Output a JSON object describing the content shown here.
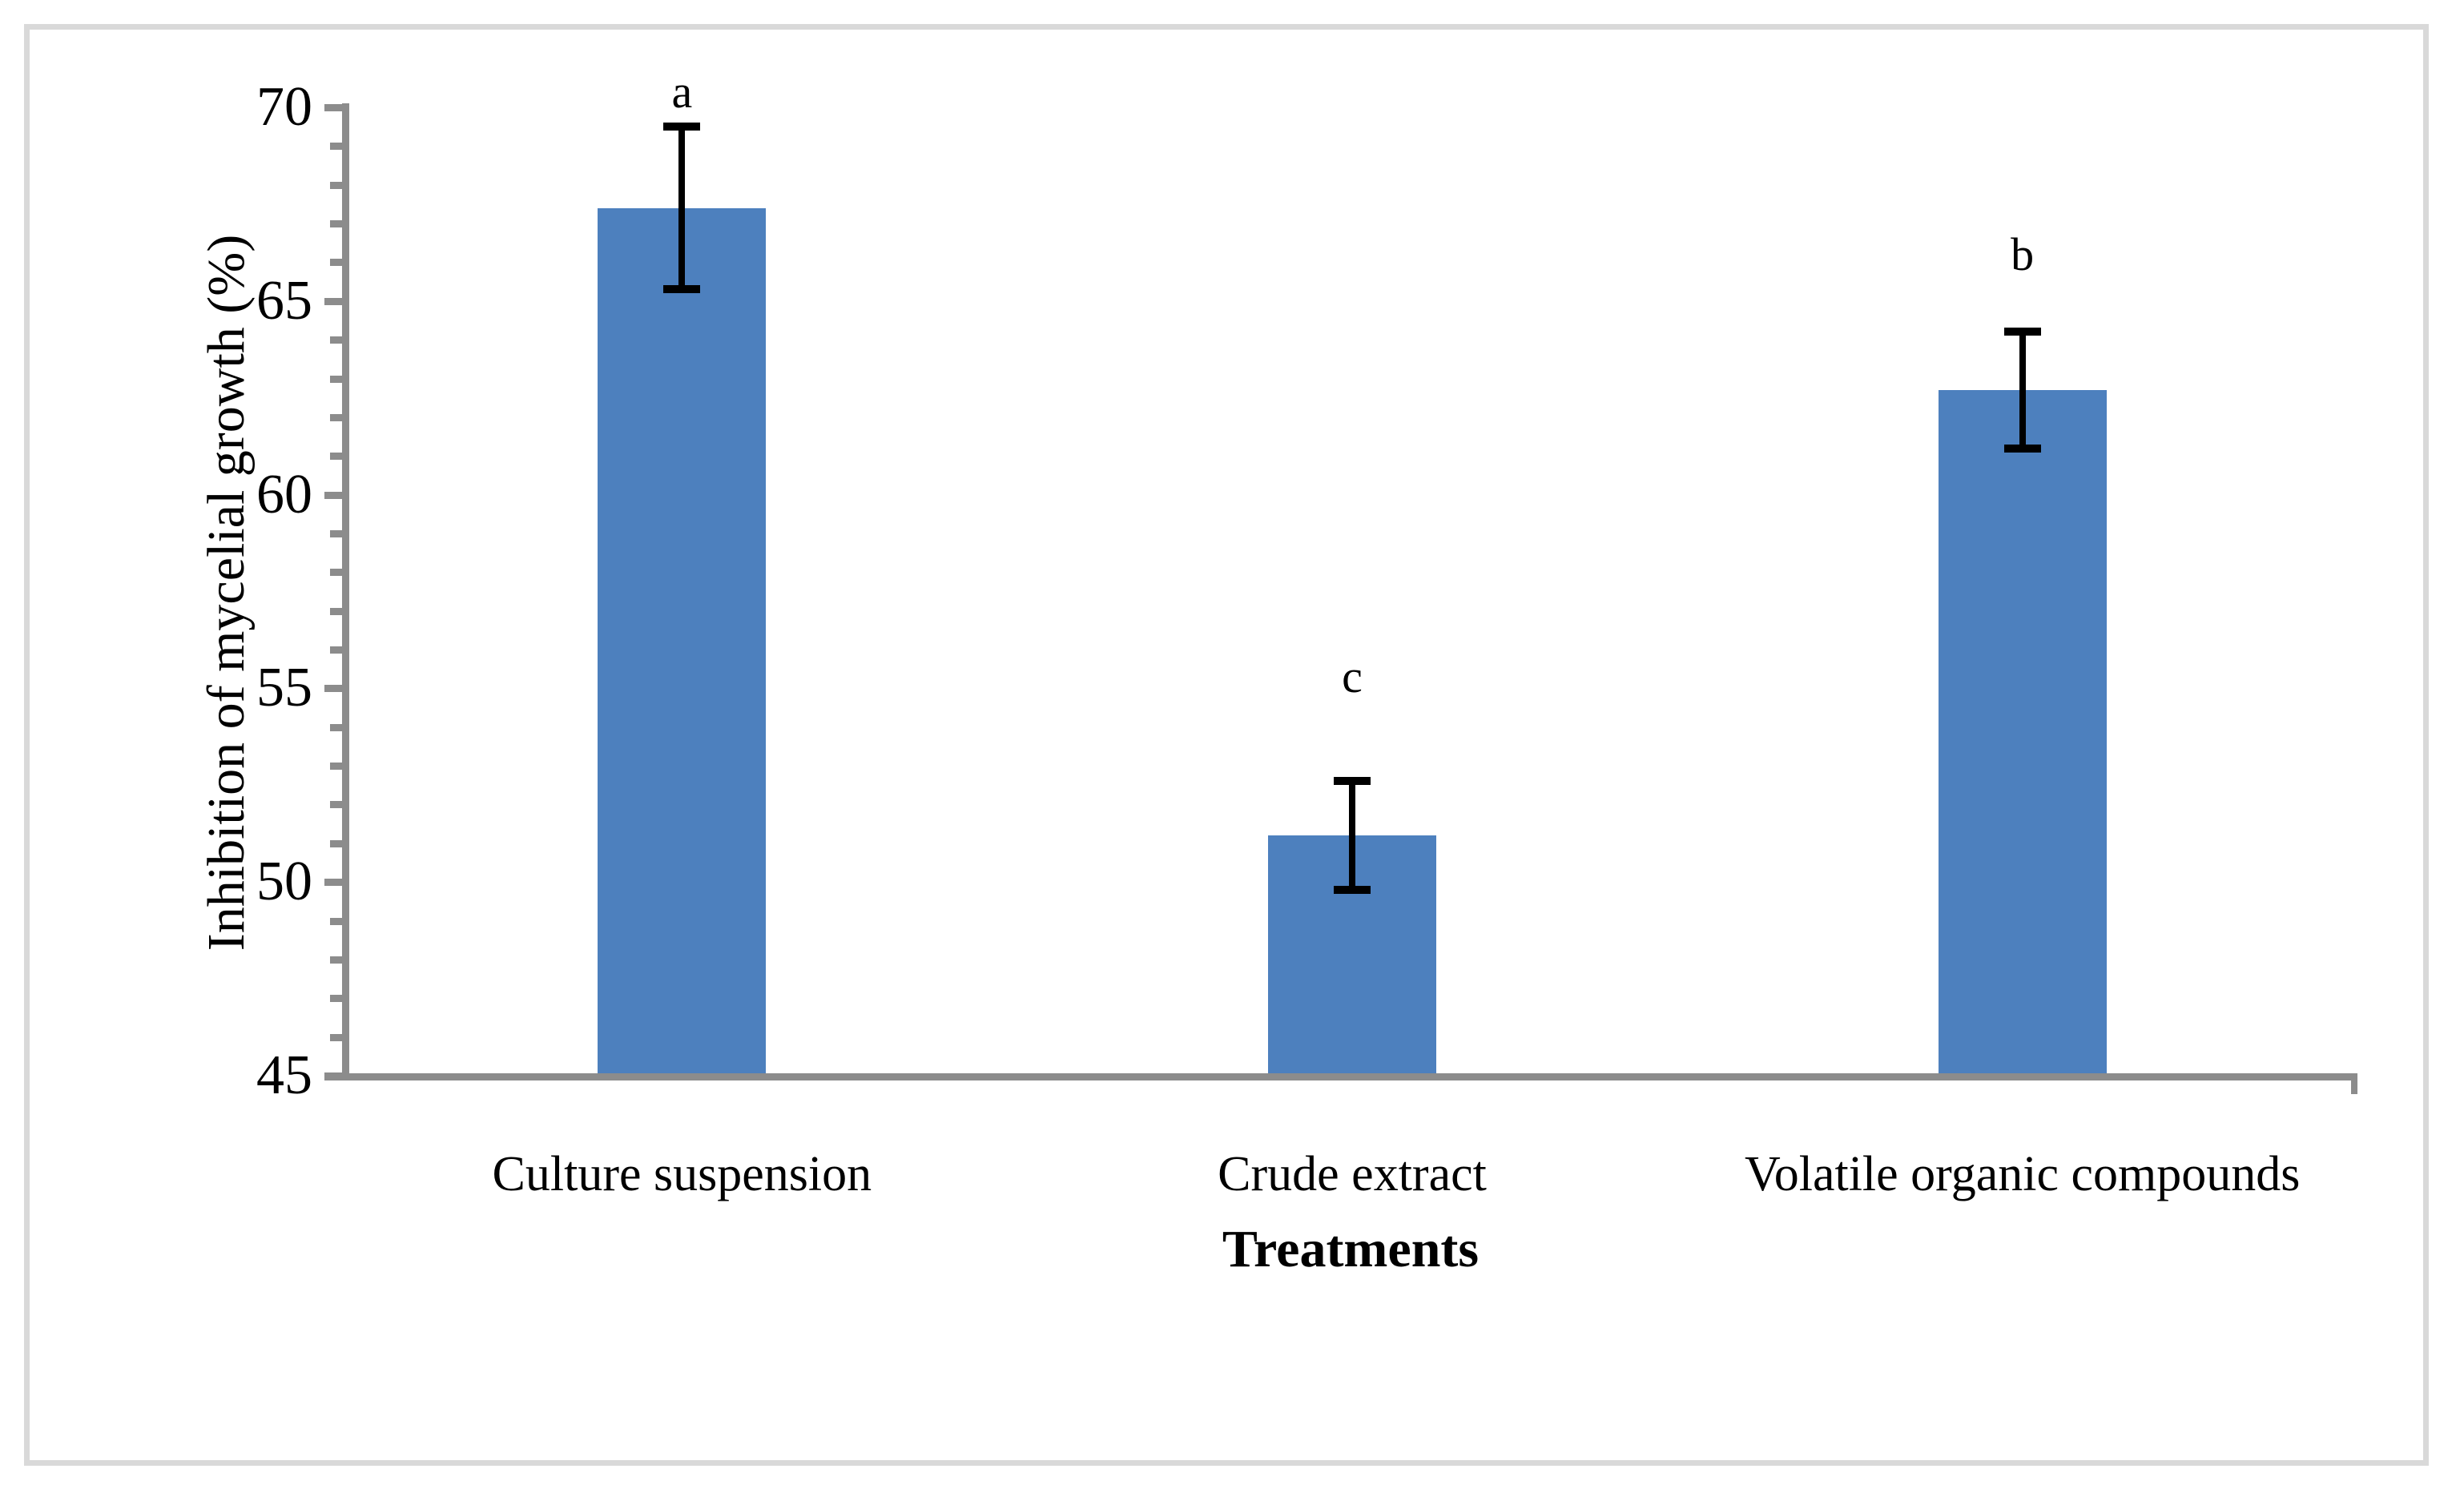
{
  "figure": {
    "background_color": "#FFFFFF",
    "border_color": "#D9D9D9"
  },
  "chart_data": {
    "type": "bar",
    "title": "",
    "xlabel": "Treatments",
    "ylabel": "Inhibition of mycelial growth (%)",
    "categories": [
      "Culture suspension",
      "Crude extract",
      "Volatile organic compounds"
    ],
    "values": [
      67.4,
      51.2,
      62.7
    ],
    "error_bars": [
      2.1,
      1.4,
      1.5
    ],
    "sig_letters": [
      "a",
      "c",
      "b"
    ],
    "sig_letter_y": [
      70.4,
      55.3,
      66.2
    ],
    "ylim": [
      45,
      70
    ],
    "y_major_step": 5,
    "y_minor_step": 1,
    "y_tick_labels": [
      "45",
      "50",
      "55",
      "60",
      "65",
      "70"
    ],
    "grid": "off",
    "legend": "none",
    "bar_color": "#4D80BE",
    "axis_color": "#8C8C8C",
    "error_color": "#000000"
  }
}
